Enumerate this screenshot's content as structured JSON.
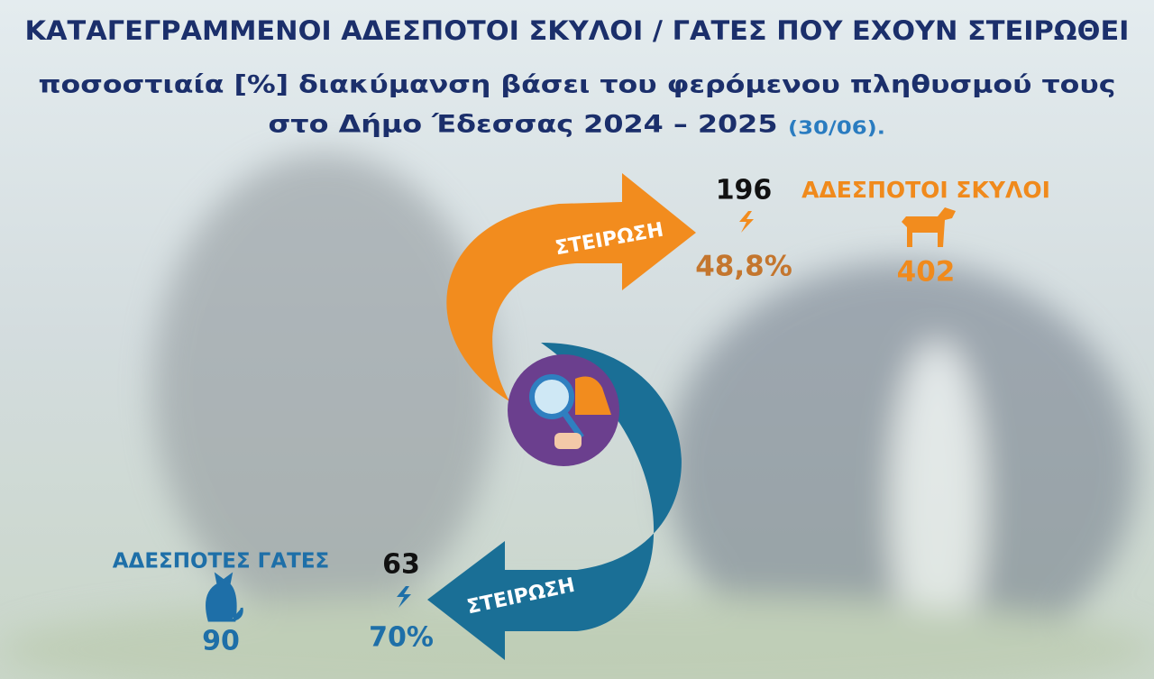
{
  "header": {
    "title": "ΚΑΤΑΓΕΓΡΑΜΜΕΝΟΙ ΑΔΕΣΠΟΤΟΙ ΣΚΥΛΟΙ / ΓΑΤΕΣ ΠΟΥ ΕΧΟΥΝ ΣΤΕΙΡΩΘΕΙ",
    "subtitle_line1": "ποσοστιαία [%] διακύμανση βάσει του φερόμενου πληθυσμού τους",
    "subtitle_line2": "στο Δήμο Έδεσσας 2024 – 2025",
    "date_note": "(30/06)."
  },
  "dogs": {
    "label": "ΑΔΕΣΠΟΤΟΙ ΣΚΥΛΟΙ",
    "total": 402,
    "sterilized": 196,
    "percent": "48,8%",
    "arrow_label": "ΣΤΕΙΡΩΣΗ"
  },
  "cats": {
    "label": "ΑΔΕΣΠΟΤΕΣ ΓΑΤΕΣ",
    "total": 90,
    "sterilized": 63,
    "percent": "70%",
    "arrow_label": "ΣΤΕΙΡΩΣΗ"
  }
}
